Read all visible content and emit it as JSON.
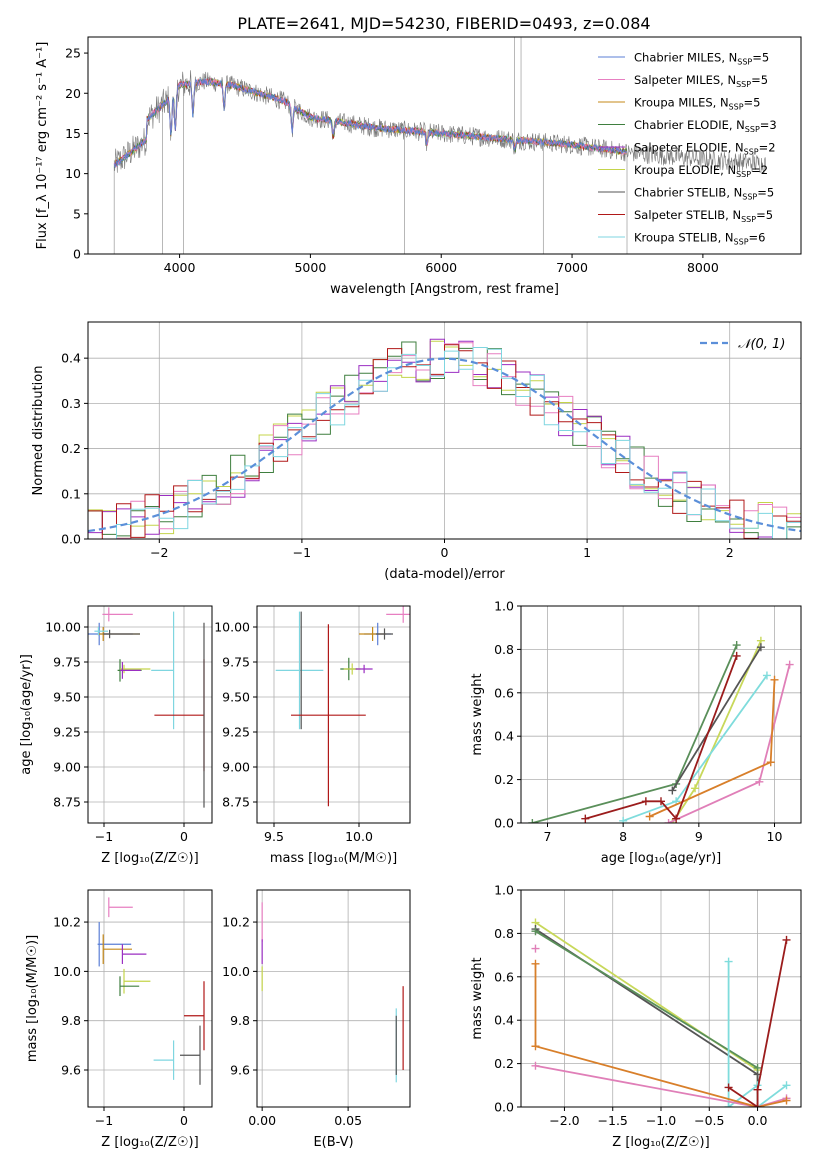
{
  "title": "PLATE=2641, MJD=54230, FIBERID=0493, z=0.084",
  "colors": {
    "c1": "#5b7fd6",
    "c2": "#e77fc1",
    "c3": "#c58a1a",
    "c4": "#3f7f3f",
    "c5": "#9b2fc2",
    "c6": "#c4d44a",
    "c7": "#555555",
    "c8": "#b01818",
    "c9": "#7fd6e0",
    "n01": "#5b8fd9",
    "lineA": "#e07fb8",
    "lineB": "#d87f2a",
    "lineC": "#5a8f5a",
    "lineD": "#9b1c1c",
    "lineE": "#c8d85a",
    "lineF": "#7fdcdc"
  },
  "chart_data": [
    {
      "id": "spectrum",
      "type": "line",
      "xlabel": "wavelength [Angstrom, rest frame]",
      "ylabel": "Flux [f_λ 10⁻¹⁷ erg cm⁻² s⁻¹ A⁻¹]",
      "xlim": [
        3300,
        8750
      ],
      "ylim": [
        0,
        27
      ],
      "xticks": [
        4000,
        5000,
        6000,
        7000,
        8000
      ],
      "yticks": [
        0,
        5,
        10,
        15,
        20,
        25
      ],
      "legend": "top-right",
      "legend_entries": [
        {
          "label": "Chabrier MILES, N",
          "sub": "SSP",
          "suffix": "=5",
          "color": "c1"
        },
        {
          "label": "Salpeter MILES, N",
          "sub": "SSP",
          "suffix": "=5",
          "color": "c2"
        },
        {
          "label": "Kroupa MILES, N",
          "sub": "SSP",
          "suffix": "=5",
          "color": "c3"
        },
        {
          "label": "Chabrier ELODIE, N",
          "sub": "SSP",
          "suffix": "=3",
          "color": "c4"
        },
        {
          "label": "Salpeter ELODIE, N",
          "sub": "SSP",
          "suffix": "=2",
          "color": "c5"
        },
        {
          "label": "Kroupa ELODIE, N",
          "sub": "SSP",
          "suffix": "=2",
          "color": "c6"
        },
        {
          "label": "Chabrier STELIB, N",
          "sub": "SSP",
          "suffix": "=5",
          "color": "c7"
        },
        {
          "label": "Salpeter STELIB, N",
          "sub": "SSP",
          "suffix": "=5",
          "color": "c8"
        },
        {
          "label": "Kroupa STELIB, N",
          "sub": "SSP",
          "suffix": "=6",
          "color": "c9"
        }
      ],
      "continuum": {
        "x": [
          3500,
          3700,
          3900,
          4000,
          4200,
          4400,
          4600,
          4800,
          5000,
          5200,
          5500,
          6000,
          6500,
          7000,
          7500,
          8000,
          8500
        ],
        "y": [
          13.0,
          16.0,
          19.0,
          21.0,
          21.5,
          21.0,
          20.0,
          19.0,
          17.0,
          16.5,
          15.7,
          15.0,
          14.3,
          13.6,
          12.5,
          11.8,
          11.2
        ]
      },
      "model_range": [
        3500,
        7420
      ],
      "data_range": [
        3500,
        8480
      ]
    },
    {
      "id": "residuals",
      "type": "line",
      "xlabel": "(data-model)/error",
      "ylabel": "Normed distribution",
      "xlim": [
        -2.5,
        2.5
      ],
      "ylim": [
        0,
        0.48
      ],
      "xticks": [
        -2,
        -1,
        0,
        1,
        2
      ],
      "yticks": [
        0.0,
        0.1,
        0.2,
        0.3,
        0.4
      ],
      "grid": true,
      "legend": "top-right",
      "legend_label": "𝒩(0, 1)",
      "normal_curve": {
        "mean": 0,
        "sigma": 1
      }
    },
    {
      "id": "age-vs-z",
      "type": "scatter",
      "xlabel": "Z [log₁₀(Z/Z☉)]",
      "ylabel": "age  [log₁₀(age/yr)]",
      "xlim": [
        -1.2,
        0.35
      ],
      "ylim": [
        8.6,
        10.15
      ],
      "xticks": [
        -1,
        0
      ],
      "yticks": [
        8.75,
        9.0,
        9.25,
        9.5,
        9.75,
        10.0
      ],
      "grid": true,
      "points": [
        {
          "color": "c2",
          "x": -0.94,
          "y": 10.09,
          "xerr": 0.08,
          "yerr": 0.05,
          "xe2": 0.3
        },
        {
          "color": "c1",
          "x": -1.06,
          "y": 9.95,
          "xerr": 0.15,
          "yerr": 0.08,
          "xe2": 0.42
        },
        {
          "color": "c3",
          "x": -1.01,
          "y": 9.95,
          "xerr": 0.06,
          "yerr": 0.05,
          "xe2": 0.46
        },
        {
          "color": "c7",
          "x": -0.93,
          "y": 9.95,
          "xerr": 0.08,
          "yerr": 0.03,
          "xe2": 0.38
        },
        {
          "color": "c9",
          "x": -1.07,
          "y": 9.97,
          "xerr": 0.05,
          "yerr": 0.03,
          "xe2": 0.12
        },
        {
          "color": "c4",
          "x": -0.8,
          "y": 9.69,
          "xerr": 0.03,
          "yerr": 0.08,
          "xe2": 0.27
        },
        {
          "color": "c6",
          "x": -0.75,
          "y": 9.7,
          "xerr": 0.05,
          "yerr": 0.03,
          "xe2": 0.33
        },
        {
          "color": "c5",
          "x": -0.77,
          "y": 9.69,
          "xerr": 0.03,
          "yerr": 0.06,
          "xe2": 0.23
        },
        {
          "color": "c9",
          "x": -0.13,
          "y": 9.69,
          "xerr": 0.28,
          "yerr": 0.42,
          "xe2": 0.0
        },
        {
          "color": "c8",
          "x": 0.25,
          "y": 9.37,
          "xerr": 0.62,
          "yerr": 0.4,
          "xe2": 0.0
        },
        {
          "color": "c7",
          "x": 0.25,
          "y": 9.37,
          "xerr": 0.0,
          "yerr": 0.66,
          "xe2": 0.0
        }
      ]
    },
    {
      "id": "age-vs-mass",
      "type": "scatter",
      "xlabel": "mass [log₁₀(M/M☉)]",
      "ylabel": "",
      "xlim": [
        9.4,
        10.3
      ],
      "ylim": [
        8.6,
        10.15
      ],
      "xticks": [
        9.5,
        10.0
      ],
      "yticks": [
        8.75,
        9.0,
        9.25,
        9.5,
        9.75,
        10.0
      ],
      "grid": true,
      "points": [
        {
          "color": "c2",
          "x": 10.26,
          "y": 10.09,
          "xerr": 0.1,
          "yerr": 0.06
        },
        {
          "color": "c1",
          "x": 10.11,
          "y": 9.95,
          "xerr": 0.08,
          "yerr": 0.08
        },
        {
          "color": "c3",
          "x": 10.08,
          "y": 9.95,
          "xerr": 0.08,
          "yerr": 0.05
        },
        {
          "color": "c7",
          "x": 10.15,
          "y": 9.95,
          "xerr": 0.05,
          "yerr": 0.04
        },
        {
          "color": "c4",
          "x": 9.94,
          "y": 9.7,
          "xerr": 0.05,
          "yerr": 0.08
        },
        {
          "color": "c6",
          "x": 9.96,
          "y": 9.7,
          "xerr": 0.05,
          "yerr": 0.04
        },
        {
          "color": "c5",
          "x": 10.03,
          "y": 9.7,
          "xerr": 0.05,
          "yerr": 0.03
        },
        {
          "color": "c9",
          "x": 9.65,
          "y": 9.69,
          "xerr": 0.14,
          "yerr": 0.42
        },
        {
          "color": "c7",
          "x": 9.66,
          "y": 9.69,
          "xerr": 0.0,
          "yerr": 0.42
        },
        {
          "color": "c8",
          "x": 9.82,
          "y": 9.37,
          "xerr": 0.22,
          "yerr": 0.65
        }
      ]
    },
    {
      "id": "massweight-vs-age",
      "type": "line",
      "xlabel": "age  [log₁₀(age/yr)]",
      "ylabel": "mass weight",
      "xlim": [
        6.65,
        10.35
      ],
      "ylim": [
        0,
        1.0
      ],
      "xticks": [
        7,
        8,
        9,
        10
      ],
      "yticks": [
        0.0,
        0.2,
        0.4,
        0.6,
        0.8,
        1.0
      ],
      "grid": true,
      "series": [
        {
          "color": "lineC",
          "x": [
            6.8,
            8.7,
            9.5
          ],
          "y": [
            0.0,
            0.18,
            0.82
          ]
        },
        {
          "color": "lineE",
          "x": [
            8.65,
            8.95,
            9.82
          ],
          "y": [
            0.0,
            0.16,
            0.84
          ]
        },
        {
          "color": "lineF",
          "x": [
            8.0,
            8.7,
            9.9
          ],
          "y": [
            0.01,
            0.1,
            0.68
          ]
        },
        {
          "color": "lineA",
          "x": [
            8.6,
            9.8,
            10.2
          ],
          "y": [
            0.0,
            0.19,
            0.73
          ]
        },
        {
          "color": "lineB",
          "x": [
            8.35,
            9.95,
            10.0
          ],
          "y": [
            0.03,
            0.28,
            0.66
          ]
        },
        {
          "color": "c7",
          "x": [
            8.65,
            9.82
          ],
          "y": [
            0.15,
            0.81
          ]
        },
        {
          "color": "lineD",
          "x": [
            7.5,
            8.3,
            8.5,
            8.7,
            9.5
          ],
          "y": [
            0.02,
            0.1,
            0.1,
            0.02,
            0.77
          ]
        }
      ]
    },
    {
      "id": "mass-vs-z",
      "type": "scatter",
      "xlabel": "Z [log₁₀(Z/Z☉)]",
      "ylabel": "mass [log₁₀(M/M☉)]",
      "xlim": [
        -1.2,
        0.35
      ],
      "ylim": [
        9.45,
        10.33
      ],
      "xticks": [
        -1,
        0
      ],
      "yticks": [
        9.6,
        9.8,
        10.0,
        10.2
      ],
      "grid": true,
      "points": [
        {
          "color": "c2",
          "x": -0.94,
          "y": 10.26,
          "xerr": 0.0,
          "yerr": 0.04,
          "xe2": 0.3
        },
        {
          "color": "c1",
          "x": -1.06,
          "y": 10.11,
          "xerr": 0.02,
          "yerr": 0.09,
          "xe2": 0.4
        },
        {
          "color": "c3",
          "x": -1.01,
          "y": 10.09,
          "xerr": 0.0,
          "yerr": 0.06,
          "xe2": 0.36
        },
        {
          "color": "c5",
          "x": -0.77,
          "y": 10.07,
          "xerr": 0.0,
          "yerr": 0.04,
          "xe2": 0.3
        },
        {
          "color": "c6",
          "x": -0.75,
          "y": 9.96,
          "xerr": 0.0,
          "yerr": 0.05,
          "xe2": 0.33
        },
        {
          "color": "c4",
          "x": -0.8,
          "y": 9.94,
          "xerr": 0.0,
          "yerr": 0.04,
          "xe2": 0.24
        },
        {
          "color": "c9",
          "x": -0.13,
          "y": 9.64,
          "xerr": 0.25,
          "yerr": 0.08,
          "xe2": 0.0
        },
        {
          "color": "c7",
          "x": 0.2,
          "y": 9.66,
          "xerr": 0.25,
          "yerr": 0.12,
          "xe2": 0.0
        },
        {
          "color": "c8",
          "x": 0.25,
          "y": 9.82,
          "xerr": 0.25,
          "yerr": 0.14,
          "xe2": 0.0
        }
      ]
    },
    {
      "id": "mass-vs-ebv",
      "type": "scatter",
      "xlabel": "E(B-V)",
      "ylabel": "",
      "xlim": [
        -0.003,
        0.086
      ],
      "ylim": [
        9.45,
        10.33
      ],
      "xticks": [
        0.0,
        0.05
      ],
      "yticks": [
        9.6,
        9.8,
        10.0,
        10.2
      ],
      "grid": true,
      "points": [
        {
          "color": "c2",
          "x": 0.0,
          "y": 10.2,
          "yerr": 0.08
        },
        {
          "color": "c5",
          "x": 0.0,
          "y": 10.08,
          "yerr": 0.05
        },
        {
          "color": "c6",
          "x": 0.0,
          "y": 9.97,
          "yerr": 0.05
        },
        {
          "color": "c9",
          "x": 0.078,
          "y": 9.7,
          "yerr": 0.15
        },
        {
          "color": "c7",
          "x": 0.078,
          "y": 9.7,
          "yerr": 0.12
        },
        {
          "color": "c8",
          "x": 0.082,
          "y": 9.77,
          "yerr": 0.17
        }
      ]
    },
    {
      "id": "massweight-vs-z",
      "type": "line",
      "xlabel": "Z [log₁₀(Z/Z☉)]",
      "ylabel": "mass weight",
      "xlim": [
        -2.45,
        0.45
      ],
      "ylim": [
        0,
        1.0
      ],
      "xticks": [
        -2.0,
        -1.5,
        -1.0,
        -0.5,
        0.0
      ],
      "yticks": [
        0.0,
        0.2,
        0.4,
        0.6,
        0.8,
        1.0
      ],
      "grid": true,
      "series": [
        {
          "color": "lineE",
          "x": [
            -2.3,
            0.0,
            0.0
          ],
          "y": [
            0.85,
            0.17,
            0.0
          ]
        },
        {
          "color": "c7",
          "x": [
            -2.3,
            0.0,
            0.0
          ],
          "y": [
            0.82,
            0.15,
            0.0
          ]
        },
        {
          "color": "lineC",
          "x": [
            -2.3,
            0.0
          ],
          "y": [
            0.81,
            0.18
          ]
        },
        {
          "color": "lineF",
          "x": [
            -0.3,
            -0.3,
            0.0,
            0.0,
            0.3
          ],
          "y": [
            0.67,
            0.0,
            0.1,
            0.0,
            0.1
          ]
        },
        {
          "color": "lineA",
          "x": [
            -2.3,
            0.0,
            0.3
          ],
          "y": [
            0.19,
            0.0,
            0.04
          ]
        },
        {
          "color": "lineB",
          "x": [
            -2.3,
            -2.3,
            0.0,
            0.3
          ],
          "y": [
            0.66,
            0.28,
            0.0,
            0.03
          ]
        },
        {
          "color": "lineD",
          "x": [
            -0.3,
            0.0,
            0.0,
            0.3
          ],
          "y": [
            0.09,
            0.0,
            0.08,
            0.77
          ]
        },
        {
          "color": "lineA",
          "x": [
            -2.3
          ],
          "y": [
            0.73
          ]
        }
      ]
    }
  ]
}
